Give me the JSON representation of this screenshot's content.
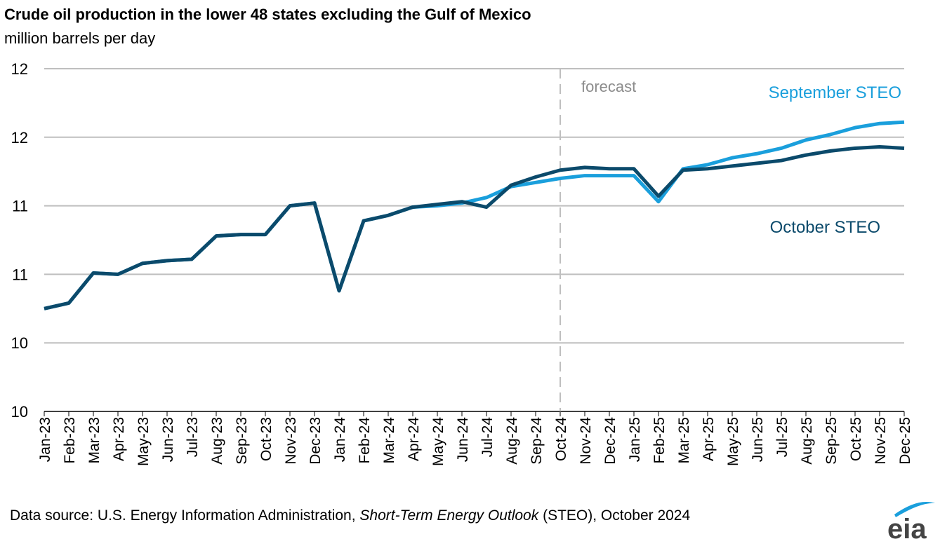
{
  "chart_data": {
    "type": "line",
    "title": "Crude oil production in the lower 48 states excluding the Gulf of Mexico",
    "subtitle": "million barrels per day",
    "ylim": [
      10,
      12.5
    ],
    "yticks": [
      {
        "value": 10.0,
        "label": "10"
      },
      {
        "value": 10.5,
        "label": "10"
      },
      {
        "value": 11.0,
        "label": "11"
      },
      {
        "value": 11.5,
        "label": "11"
      },
      {
        "value": 12.0,
        "label": "12"
      },
      {
        "value": 12.5,
        "label": "12"
      }
    ],
    "grid": true,
    "categories": [
      "Jan-23",
      "Feb-23",
      "Mar-23",
      "Apr-23",
      "May-23",
      "Jun-23",
      "Jul-23",
      "Aug-23",
      "Sep-23",
      "Oct-23",
      "Nov-23",
      "Dec-23",
      "Jan-24",
      "Feb-24",
      "Mar-24",
      "Apr-24",
      "May-24",
      "Jun-24",
      "Jul-24",
      "Aug-24",
      "Sep-24",
      "Oct-24",
      "Nov-24",
      "Dec-24",
      "Jan-25",
      "Feb-25",
      "Mar-25",
      "Apr-25",
      "May-25",
      "Jun-25",
      "Jul-25",
      "Aug-25",
      "Sep-25",
      "Oct-25",
      "Nov-25",
      "Dec-25"
    ],
    "forecast_start": "Oct-24",
    "forecast_label": "forecast",
    "series": [
      {
        "name": "September STEO",
        "color": "#1a9fdc",
        "values": [
          10.75,
          10.79,
          11.01,
          11.0,
          11.08,
          11.1,
          11.11,
          11.28,
          11.29,
          11.29,
          11.5,
          11.52,
          10.88,
          11.39,
          11.43,
          11.49,
          11.5,
          11.52,
          11.56,
          11.64,
          11.67,
          11.7,
          11.72,
          11.72,
          11.72,
          11.53,
          11.77,
          11.8,
          11.85,
          11.88,
          11.92,
          11.98,
          12.02,
          12.07,
          12.1,
          12.11
        ]
      },
      {
        "name": "October STEO",
        "color": "#0b4a6b",
        "values": [
          10.75,
          10.79,
          11.01,
          11.0,
          11.08,
          11.1,
          11.11,
          11.28,
          11.29,
          11.29,
          11.5,
          11.52,
          10.88,
          11.39,
          11.43,
          11.49,
          11.51,
          11.53,
          11.49,
          11.65,
          11.71,
          11.76,
          11.78,
          11.77,
          11.77,
          11.57,
          11.76,
          11.77,
          11.79,
          11.81,
          11.83,
          11.87,
          11.9,
          11.92,
          11.93,
          11.92
        ]
      }
    ]
  },
  "source": {
    "prefix": "Data source: U.S. Energy Information Administration, ",
    "italic": "Short-Term Energy Outlook",
    "suffix": " (STEO), October 2024"
  },
  "logo": {
    "text": "eia",
    "arc_color": "#1a9fdc"
  }
}
